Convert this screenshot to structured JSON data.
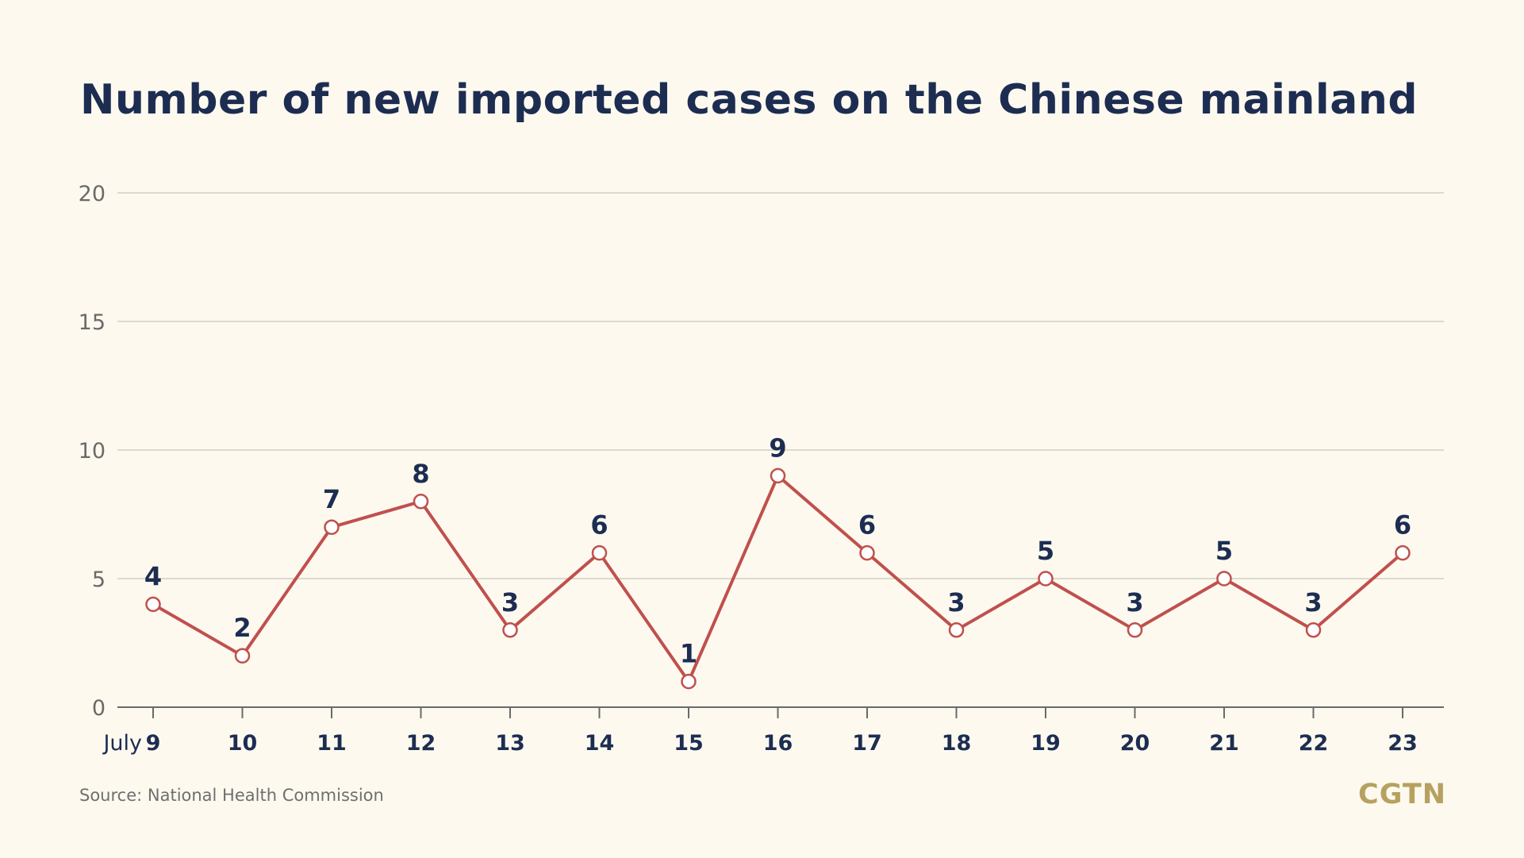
{
  "title": "Number of new imported cases on the Chinese mainland",
  "source": "Source: National Health Commission",
  "brand": "CGTN",
  "colors": {
    "background": "#fdf9ef",
    "title": "#1d2d52",
    "line": "#c0504d",
    "marker_fill": "#ffffff",
    "grid": "#d2cfc4",
    "brand": "#b6a15f"
  },
  "chart_data": {
    "type": "line",
    "x_prefix": "July",
    "categories": [
      "9",
      "10",
      "11",
      "12",
      "13",
      "14",
      "15",
      "16",
      "17",
      "18",
      "19",
      "20",
      "21",
      "22",
      "23"
    ],
    "values": [
      4,
      2,
      7,
      8,
      3,
      6,
      1,
      9,
      6,
      3,
      5,
      3,
      5,
      3,
      6
    ],
    "ylim": [
      0,
      20
    ],
    "yticks": [
      0,
      5,
      10,
      15,
      20
    ],
    "grid": true,
    "legend": false,
    "data_labels": true
  }
}
